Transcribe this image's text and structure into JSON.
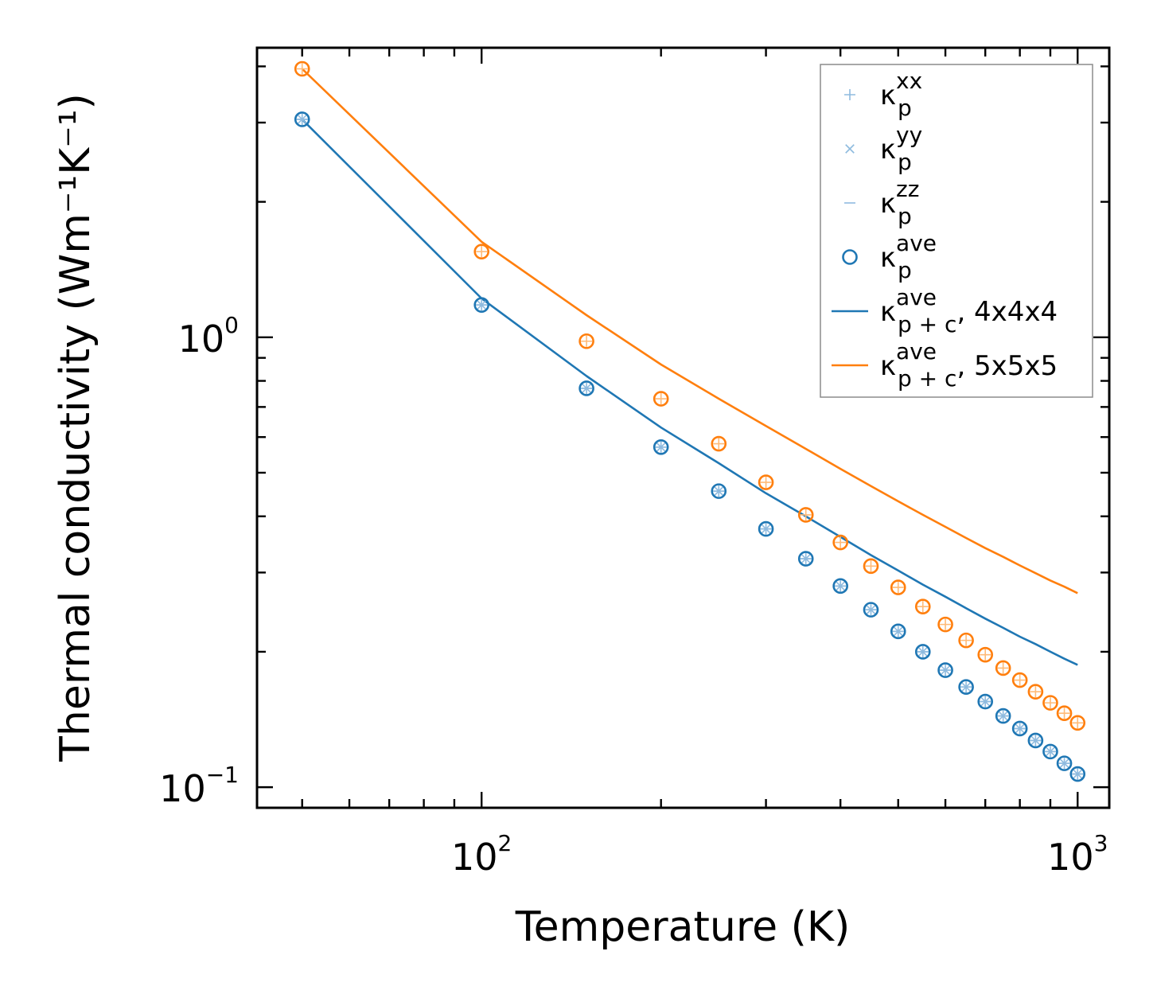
{
  "chart_data": {
    "type": "scatter",
    "title": "",
    "xlabel": "Temperature (K)",
    "ylabel": "Thermal conductivity (Wm⁻¹K⁻¹)",
    "xscale": "log",
    "yscale": "log",
    "xlim": [
      42,
      1130
    ],
    "ylim": [
      0.09,
      4.4
    ],
    "xticks": [
      {
        "value": 100,
        "base": "10",
        "exp": "2"
      },
      {
        "value": 1000,
        "base": "10",
        "exp": "3"
      }
    ],
    "yticks": [
      {
        "value": 0.1,
        "base": "10",
        "exp": "−1"
      },
      {
        "value": 1.0,
        "base": "10",
        "exp": "0"
      }
    ],
    "legend_position": "top-right",
    "series": [
      {
        "name": "κ_p^xx",
        "legend_base": "κ",
        "legend_sup": "xx",
        "legend_sub": "p",
        "legend_suffix": "",
        "kind": "marker",
        "marker": "plus",
        "color": "#8fbbdf",
        "group": "4x4x4",
        "x": [
          50,
          100,
          150,
          200,
          250,
          300,
          350,
          400,
          450,
          500,
          550,
          600,
          650,
          700,
          750,
          800,
          850,
          900,
          950,
          1000
        ],
        "y": [
          3.05,
          1.18,
          0.77,
          0.57,
          0.455,
          0.375,
          0.322,
          0.28,
          0.248,
          0.222,
          0.2,
          0.182,
          0.167,
          0.155,
          0.144,
          0.135,
          0.127,
          0.12,
          0.113,
          0.107
        ]
      },
      {
        "name": "κ_p^yy",
        "legend_base": "κ",
        "legend_sup": "yy",
        "legend_sub": "p",
        "legend_suffix": "",
        "kind": "marker",
        "marker": "cross",
        "color": "#8fbbdf",
        "group": "4x4x4",
        "x": [
          50,
          100,
          150,
          200,
          250,
          300,
          350,
          400,
          450,
          500,
          550,
          600,
          650,
          700,
          750,
          800,
          850,
          900,
          950,
          1000
        ],
        "y": [
          3.05,
          1.18,
          0.77,
          0.57,
          0.455,
          0.375,
          0.322,
          0.28,
          0.248,
          0.222,
          0.2,
          0.182,
          0.167,
          0.155,
          0.144,
          0.135,
          0.127,
          0.12,
          0.113,
          0.107
        ]
      },
      {
        "name": "κ_p^zz",
        "legend_base": "κ",
        "legend_sup": "zz",
        "legend_sub": "p",
        "legend_suffix": "",
        "kind": "marker",
        "marker": "dash",
        "color": "#8fbbdf",
        "group": "4x4x4",
        "x": [
          50,
          100,
          150,
          200,
          250,
          300,
          350,
          400,
          450,
          500,
          550,
          600,
          650,
          700,
          750,
          800,
          850,
          900,
          950,
          1000
        ],
        "y": [
          3.05,
          1.18,
          0.77,
          0.57,
          0.455,
          0.375,
          0.322,
          0.28,
          0.248,
          0.222,
          0.2,
          0.182,
          0.167,
          0.155,
          0.144,
          0.135,
          0.127,
          0.12,
          0.113,
          0.107
        ]
      },
      {
        "name": "κ_p^ave",
        "legend_base": "κ",
        "legend_sup": "ave",
        "legend_sub": "p",
        "legend_suffix": "",
        "kind": "marker",
        "marker": "circle",
        "color": "#1f77b4",
        "group": "4x4x4",
        "x": [
          50,
          100,
          150,
          200,
          250,
          300,
          350,
          400,
          450,
          500,
          550,
          600,
          650,
          700,
          750,
          800,
          850,
          900,
          950,
          1000
        ],
        "y": [
          3.05,
          1.18,
          0.77,
          0.57,
          0.455,
          0.375,
          0.322,
          0.28,
          0.248,
          0.222,
          0.2,
          0.182,
          0.167,
          0.155,
          0.144,
          0.135,
          0.127,
          0.12,
          0.113,
          0.107
        ]
      },
      {
        "name": "κ_{p+c}^ave, 4x4x4",
        "legend_base": "κ",
        "legend_sup": "ave",
        "legend_sub": "p + c",
        "legend_suffix": ", 4x4x4",
        "kind": "line",
        "color": "#1f77b4",
        "x": [
          50,
          100,
          150,
          200,
          250,
          300,
          350,
          400,
          450,
          500,
          550,
          600,
          650,
          700,
          750,
          800,
          850,
          900,
          950,
          1000
        ],
        "y": [
          3.05,
          1.22,
          0.82,
          0.63,
          0.525,
          0.45,
          0.4,
          0.36,
          0.328,
          0.303,
          0.282,
          0.265,
          0.25,
          0.237,
          0.226,
          0.216,
          0.208,
          0.2,
          0.193,
          0.187
        ]
      },
      {
        "name": "κ_{p+c}^ave, 5x5x5",
        "legend_base": "κ",
        "legend_sup": "ave",
        "legend_sub": "p + c",
        "legend_suffix": ", 5x5x5",
        "kind": "line",
        "color": "#ff7f0e",
        "x": [
          50,
          100,
          150,
          200,
          250,
          300,
          350,
          400,
          450,
          500,
          550,
          600,
          650,
          700,
          750,
          800,
          850,
          900,
          950,
          1000
        ],
        "y": [
          3.95,
          1.63,
          1.12,
          0.87,
          0.73,
          0.635,
          0.565,
          0.51,
          0.467,
          0.432,
          0.403,
          0.379,
          0.358,
          0.34,
          0.325,
          0.311,
          0.299,
          0.288,
          0.279,
          0.27
        ]
      },
      {
        "name": "5x5x5 components (unlabeled)",
        "kind": "marker",
        "marker": "plus",
        "color": "#ffbb78",
        "group": "5x5x5",
        "in_legend": false,
        "x": [
          50,
          100,
          150,
          200,
          250,
          300,
          350,
          400,
          450,
          500,
          550,
          600,
          650,
          700,
          750,
          800,
          850,
          900,
          950,
          1000
        ],
        "y": [
          3.95,
          1.55,
          0.98,
          0.73,
          0.58,
          0.476,
          0.403,
          0.35,
          0.31,
          0.278,
          0.252,
          0.23,
          0.212,
          0.197,
          0.184,
          0.173,
          0.163,
          0.154,
          0.146,
          0.139
        ]
      },
      {
        "name": "5x5x5 average (unlabeled)",
        "kind": "marker",
        "marker": "circle",
        "color": "#ff7f0e",
        "group": "5x5x5",
        "in_legend": false,
        "x": [
          50,
          100,
          150,
          200,
          250,
          300,
          350,
          400,
          450,
          500,
          550,
          600,
          650,
          700,
          750,
          800,
          850,
          900,
          950,
          1000
        ],
        "y": [
          3.95,
          1.55,
          0.98,
          0.73,
          0.58,
          0.476,
          0.403,
          0.35,
          0.31,
          0.278,
          0.252,
          0.23,
          0.212,
          0.197,
          0.184,
          0.173,
          0.163,
          0.154,
          0.146,
          0.139
        ]
      }
    ]
  }
}
